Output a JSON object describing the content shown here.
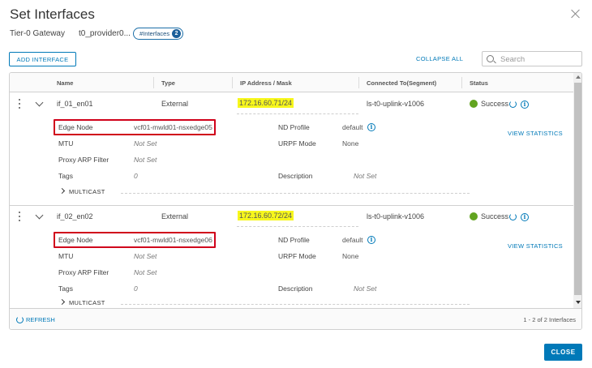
{
  "dialog": {
    "title": "Set Interfaces",
    "gateway_label": "Tier-0 Gateway",
    "gateway_name": "t0_provider0...",
    "interfaces_pill": "#Interfaces",
    "interfaces_count": "2"
  },
  "toolbar": {
    "add_label": "ADD INTERFACE",
    "collapse_label": "COLLAPSE ALL",
    "search_placeholder": "Search"
  },
  "table": {
    "headers": [
      "Name",
      "Type",
      "IP Address / Mask",
      "Connected To(Segment)",
      "Status"
    ],
    "detail_labels": {
      "edge_node": "Edge Node",
      "mtu": "MTU",
      "proxy_arp": "Proxy ARP Filter",
      "tags": "Tags",
      "nd_profile": "ND Profile",
      "urpf": "URPF Mode",
      "description": "Description",
      "multicast": "MULTICAST",
      "view_stats": "VIEW STATISTICS"
    },
    "rows": [
      {
        "name": "if_01_en01",
        "type": "External",
        "ip": "172.16.60.71/24",
        "segment": "ls-t0-uplink-v1006",
        "status": "Success",
        "edge_node": "vcf01-mwld01-nsxedge05",
        "mtu": "Not Set",
        "proxy_arp": "Not Set",
        "tags": "0",
        "nd_profile": "default",
        "urpf": "None",
        "description": "Not Set"
      },
      {
        "name": "if_02_en02",
        "type": "External",
        "ip": "172.16.60.72/24",
        "segment": "ls-t0-uplink-v1006",
        "status": "Success",
        "edge_node": "vcf01-mwld01-nsxedge06",
        "mtu": "Not Set",
        "proxy_arp": "Not Set",
        "tags": "0",
        "nd_profile": "default",
        "urpf": "None",
        "description": "Not Set"
      }
    ]
  },
  "footer": {
    "refresh_label": "REFRESH",
    "count_text": "1 - 2 of 2 Interfaces"
  },
  "buttons": {
    "close_label": "CLOSE"
  },
  "colors": {
    "accent": "#0079b8",
    "success": "#62a420",
    "highlight": "#f7f71c",
    "annotation": "#d0021b"
  }
}
